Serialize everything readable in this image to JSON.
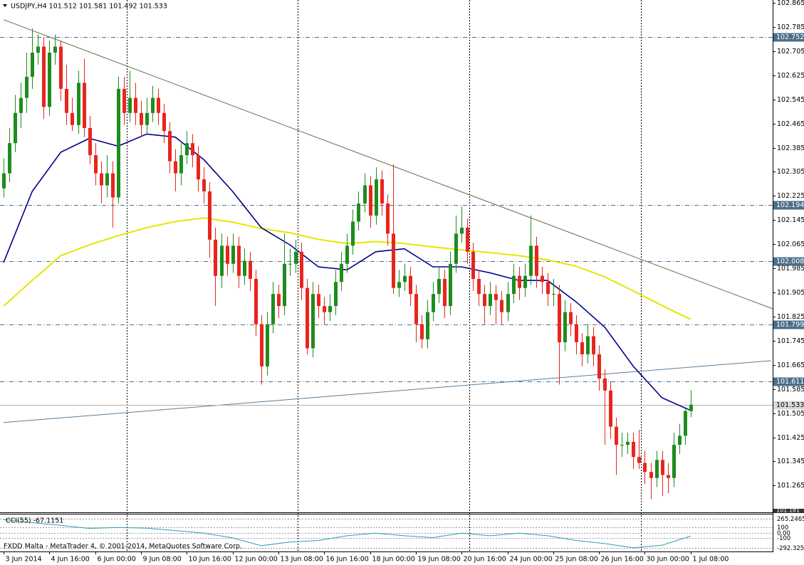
{
  "chart_data": {
    "type": "candlestick",
    "title": "USDJPY,H4  101.512 101.581 101.492 101.533",
    "footer": "FXDD Malta - MetaTrader 4, © 2001-2014, MetaQuotes Software Corp.",
    "categories": [
      "3 Jun 2014",
      null,
      null,
      null,
      null,
      null,
      null,
      null,
      "4 Jun 16:00",
      null,
      null,
      null,
      null,
      null,
      null,
      null,
      "6 Jun 00:00",
      null,
      null,
      null,
      null,
      null,
      null,
      null,
      "9 Jun 08:00",
      null,
      null,
      null,
      null,
      null,
      null,
      null,
      "10 Jun 16:00",
      null,
      null,
      null,
      null,
      null,
      null,
      null,
      "12 Jun 00:00",
      null,
      null,
      null,
      null,
      null,
      null,
      null,
      "13 Jun 08:00",
      null,
      null,
      null,
      null,
      null,
      null,
      null,
      "16 Jun 16:00",
      null,
      null,
      null,
      null,
      null,
      null,
      null,
      "18 Jun 00:00",
      null,
      null,
      null,
      null,
      null,
      null,
      null,
      "19 Jun 08:00",
      null,
      null,
      null,
      null,
      null,
      null,
      null,
      "20 Jun 16:00",
      null,
      null,
      null,
      null,
      null,
      null,
      null,
      "24 Jun 00:00",
      null,
      null,
      null,
      null,
      null,
      null,
      null,
      "25 Jun 08:00",
      null,
      null,
      null,
      null,
      null,
      null,
      null,
      "26 Jun 16:00",
      null,
      null,
      null,
      null,
      null,
      null,
      null,
      "30 Jun 00:00",
      null,
      null,
      null,
      null,
      null,
      null,
      null,
      "1 Jul 08:00"
    ],
    "candles": [
      [
        102.25,
        102.35,
        102.22,
        102.3
      ],
      [
        102.3,
        102.45,
        102.27,
        102.4
      ],
      [
        102.4,
        102.56,
        102.37,
        102.5
      ],
      [
        102.5,
        102.6,
        102.45,
        102.55
      ],
      [
        102.55,
        102.7,
        102.5,
        102.62
      ],
      [
        102.62,
        102.78,
        102.58,
        102.7
      ],
      [
        102.7,
        102.76,
        102.66,
        102.72
      ],
      [
        102.72,
        102.75,
        102.48,
        102.52
      ],
      [
        102.52,
        102.74,
        102.49,
        102.7
      ],
      [
        102.7,
        102.76,
        102.66,
        102.72
      ],
      [
        102.72,
        102.74,
        102.54,
        102.58
      ],
      [
        102.58,
        102.66,
        102.46,
        102.5
      ],
      [
        102.5,
        102.55,
        102.44,
        102.46
      ],
      [
        102.46,
        102.64,
        102.43,
        102.6
      ],
      [
        102.6,
        102.68,
        102.42,
        102.45
      ],
      [
        102.45,
        102.49,
        102.33,
        102.36
      ],
      [
        102.36,
        102.4,
        102.26,
        102.3
      ],
      [
        102.3,
        102.34,
        102.2,
        102.26
      ],
      [
        102.26,
        102.36,
        102.22,
        102.3
      ],
      [
        102.3,
        102.34,
        102.12,
        102.22
      ],
      [
        102.22,
        102.62,
        102.2,
        102.58
      ],
      [
        102.58,
        102.62,
        102.46,
        102.5
      ],
      [
        102.5,
        102.64,
        102.47,
        102.55
      ],
      [
        102.55,
        102.6,
        102.46,
        102.5
      ],
      [
        102.5,
        102.54,
        102.42,
        102.46
      ],
      [
        102.46,
        102.55,
        102.43,
        102.5
      ],
      [
        102.5,
        102.59,
        102.47,
        102.55
      ],
      [
        102.55,
        102.58,
        102.46,
        102.5
      ],
      [
        102.5,
        102.53,
        102.4,
        102.44
      ],
      [
        102.44,
        102.47,
        102.3,
        102.34
      ],
      [
        102.34,
        102.38,
        102.24,
        102.3
      ],
      [
        102.3,
        102.4,
        102.26,
        102.36
      ],
      [
        102.36,
        102.44,
        102.33,
        102.4
      ],
      [
        102.4,
        102.43,
        102.32,
        102.36
      ],
      [
        102.36,
        102.39,
        102.24,
        102.28
      ],
      [
        102.28,
        102.32,
        102.2,
        102.24
      ],
      [
        102.24,
        102.27,
        102.02,
        102.08
      ],
      [
        102.08,
        102.12,
        101.86,
        101.96
      ],
      [
        101.96,
        102.1,
        101.92,
        102.06
      ],
      [
        102.06,
        102.09,
        101.96,
        102.0
      ],
      [
        102.0,
        102.1,
        101.97,
        102.06
      ],
      [
        102.06,
        102.09,
        101.92,
        101.96
      ],
      [
        101.96,
        102.05,
        101.93,
        102.01
      ],
      [
        102.01,
        102.04,
        101.91,
        101.95
      ],
      [
        101.95,
        101.98,
        101.76,
        101.8
      ],
      [
        101.8,
        101.83,
        101.6,
        101.66
      ],
      [
        101.66,
        101.84,
        101.63,
        101.8
      ],
      [
        101.8,
        101.94,
        101.77,
        101.9
      ],
      [
        101.9,
        101.93,
        101.82,
        101.86
      ],
      [
        101.86,
        102.1,
        101.83,
        102.0
      ],
      [
        102.0,
        102.05,
        101.96,
        102.0
      ],
      [
        102.0,
        102.08,
        101.97,
        102.04
      ],
      [
        102.04,
        102.07,
        101.88,
        101.92
      ],
      [
        101.92,
        101.95,
        101.7,
        101.72
      ],
      [
        101.72,
        101.94,
        101.69,
        101.9
      ],
      [
        101.9,
        101.93,
        101.82,
        101.86
      ],
      [
        101.86,
        101.89,
        101.8,
        101.84
      ],
      [
        101.84,
        101.9,
        101.81,
        101.86
      ],
      [
        101.86,
        101.98,
        101.83,
        101.94
      ],
      [
        101.94,
        102.04,
        101.91,
        102.0
      ],
      [
        102.0,
        102.1,
        101.97,
        102.06
      ],
      [
        102.06,
        102.18,
        102.03,
        102.14
      ],
      [
        102.14,
        102.24,
        102.11,
        102.2
      ],
      [
        102.2,
        102.3,
        102.17,
        102.26
      ],
      [
        102.26,
        102.29,
        102.12,
        102.16
      ],
      [
        102.16,
        102.32,
        102.13,
        102.28
      ],
      [
        102.28,
        102.31,
        102.16,
        102.2
      ],
      [
        102.2,
        102.23,
        102.06,
        102.1
      ],
      [
        102.1,
        102.33,
        101.9,
        101.92
      ],
      [
        101.92,
        101.98,
        101.89,
        101.94
      ],
      [
        101.94,
        102.0,
        101.91,
        101.96
      ],
      [
        101.96,
        101.99,
        101.86,
        101.9
      ],
      [
        101.9,
        101.93,
        101.74,
        101.8
      ],
      [
        101.8,
        101.83,
        101.72,
        101.75
      ],
      [
        101.75,
        101.88,
        101.72,
        101.84
      ],
      [
        101.84,
        101.94,
        101.81,
        101.9
      ],
      [
        101.9,
        101.99,
        101.87,
        101.95
      ],
      [
        101.95,
        101.98,
        101.82,
        101.86
      ],
      [
        101.86,
        102.04,
        101.83,
        102.0
      ],
      [
        102.0,
        102.16,
        101.97,
        102.1
      ],
      [
        102.1,
        102.19,
        102.07,
        102.12
      ],
      [
        102.12,
        102.15,
        102.0,
        102.04
      ],
      [
        102.04,
        102.07,
        101.91,
        101.95
      ],
      [
        101.95,
        101.98,
        101.86,
        101.9
      ],
      [
        101.9,
        101.93,
        101.8,
        101.86
      ],
      [
        101.86,
        101.94,
        101.83,
        101.9
      ],
      [
        101.9,
        101.93,
        101.8,
        101.88
      ],
      [
        101.88,
        101.91,
        101.8,
        101.84
      ],
      [
        101.84,
        101.94,
        101.81,
        101.9
      ],
      [
        101.9,
        102.0,
        101.87,
        101.96
      ],
      [
        101.96,
        101.99,
        101.88,
        101.92
      ],
      [
        101.92,
        102.0,
        101.89,
        101.96
      ],
      [
        101.96,
        102.16,
        101.93,
        102.06
      ],
      [
        102.06,
        102.09,
        101.92,
        101.96
      ],
      [
        101.96,
        101.99,
        101.9,
        101.94
      ],
      [
        101.94,
        101.97,
        101.86,
        101.9
      ],
      [
        101.9,
        101.95,
        101.86,
        101.9
      ],
      [
        101.9,
        101.93,
        101.6,
        101.74
      ],
      [
        101.74,
        101.88,
        101.71,
        101.84
      ],
      [
        101.84,
        101.87,
        101.76,
        101.8
      ],
      [
        101.8,
        101.83,
        101.7,
        101.74
      ],
      [
        101.74,
        101.77,
        101.66,
        101.7
      ],
      [
        101.7,
        101.8,
        101.67,
        101.76
      ],
      [
        101.76,
        101.79,
        101.66,
        101.7
      ],
      [
        101.7,
        101.73,
        101.58,
        101.62
      ],
      [
        101.62,
        101.65,
        101.4,
        101.58
      ],
      [
        101.58,
        101.61,
        101.42,
        101.46
      ],
      [
        101.46,
        101.49,
        101.3,
        101.4
      ],
      [
        101.4,
        101.44,
        101.36,
        101.4
      ],
      [
        101.4,
        101.44,
        101.37,
        101.41
      ],
      [
        101.41,
        101.44,
        101.32,
        101.36
      ],
      [
        101.36,
        101.45,
        101.32,
        101.34
      ],
      [
        101.34,
        101.38,
        101.27,
        101.31
      ],
      [
        101.31,
        101.34,
        101.22,
        101.29
      ],
      [
        101.29,
        101.38,
        101.26,
        101.35
      ],
      [
        101.35,
        101.38,
        101.23,
        101.3
      ],
      [
        101.3,
        101.34,
        101.24,
        101.29
      ],
      [
        101.29,
        101.44,
        101.26,
        101.4
      ],
      [
        101.4,
        101.47,
        101.37,
        101.43
      ],
      [
        101.43,
        101.52,
        101.4,
        101.512
      ],
      [
        101.512,
        101.581,
        101.492,
        101.533
      ]
    ],
    "up_color": "#1e8c1e",
    "down_color": "#e8251e",
    "ylim": [
      101.181,
      102.865
    ],
    "yticks": [
      102.865,
      102.785,
      102.705,
      102.625,
      102.545,
      102.465,
      102.385,
      102.305,
      102.225,
      102.145,
      102.065,
      101.985,
      101.905,
      101.825,
      101.745,
      101.665,
      101.585,
      101.505,
      101.425,
      101.345,
      101.265
    ],
    "levels": [
      102.752,
      102.194,
      102.008,
      101.799,
      101.611
    ],
    "level_color": "#4a6f8a",
    "current_price": 101.533,
    "moving_averages": [
      {
        "color": "#e6e600",
        "x": [
          0,
          5,
          10,
          15,
          20,
          25,
          30,
          35,
          40,
          45,
          50,
          55,
          60,
          65,
          70,
          75,
          80,
          85,
          90,
          95,
          100,
          105,
          110,
          115,
          120
        ],
        "values": [
          101.86,
          101.945,
          102.027,
          102.063,
          102.093,
          102.12,
          102.14,
          102.152,
          102.138,
          102.117,
          102.103,
          102.081,
          102.067,
          102.074,
          102.067,
          102.056,
          102.046,
          102.037,
          102.027,
          102.013,
          101.992,
          101.957,
          101.91,
          101.862,
          101.816
        ]
      },
      {
        "color": "#00008b",
        "x": [
          0,
          5,
          10,
          15,
          20,
          25,
          30,
          35,
          40,
          45,
          50,
          55,
          60,
          65,
          70,
          75,
          80,
          85,
          90,
          95,
          100,
          105,
          110,
          115,
          120
        ],
        "values": [
          102.004,
          102.24,
          102.37,
          102.416,
          102.39,
          102.43,
          102.42,
          102.345,
          102.24,
          102.12,
          102.063,
          101.99,
          101.98,
          102.04,
          102.05,
          101.99,
          101.99,
          101.97,
          101.945,
          101.945,
          101.874,
          101.79,
          101.66,
          101.556,
          101.514
        ]
      }
    ],
    "trend_lines": [
      {
        "color": "#6b6b4a",
        "x": [
          0,
          135
        ],
        "values": [
          102.809,
          101.846
        ]
      },
      {
        "color": "#5a7e9a",
        "x": [
          0,
          134
        ],
        "values": [
          101.474,
          101.679
        ]
      }
    ],
    "indicator": {
      "type": "line",
      "title": "CCI(55) -67.1151",
      "color": "#2e9fb0",
      "x": [
        0,
        5,
        10,
        15,
        20,
        25,
        30,
        35,
        40,
        45,
        50,
        55,
        60,
        65,
        70,
        75,
        80,
        85,
        90,
        95,
        100,
        105,
        110,
        115,
        120
      ],
      "values": [
        250,
        190,
        140,
        80,
        100,
        85,
        40,
        -10,
        -100,
        -250,
        -180,
        -150,
        -60,
        -10,
        -60,
        -95,
        -10,
        -60,
        -10,
        -60,
        -150,
        -210,
        -290,
        -240,
        -67.1151
      ],
      "ylim": [
        -292.3253,
        265.2465
      ],
      "yticks": [
        265.2465,
        100,
        {
          "value": 0,
          "label": "0.00"
        },
        -100,
        -292.3253
      ]
    }
  }
}
